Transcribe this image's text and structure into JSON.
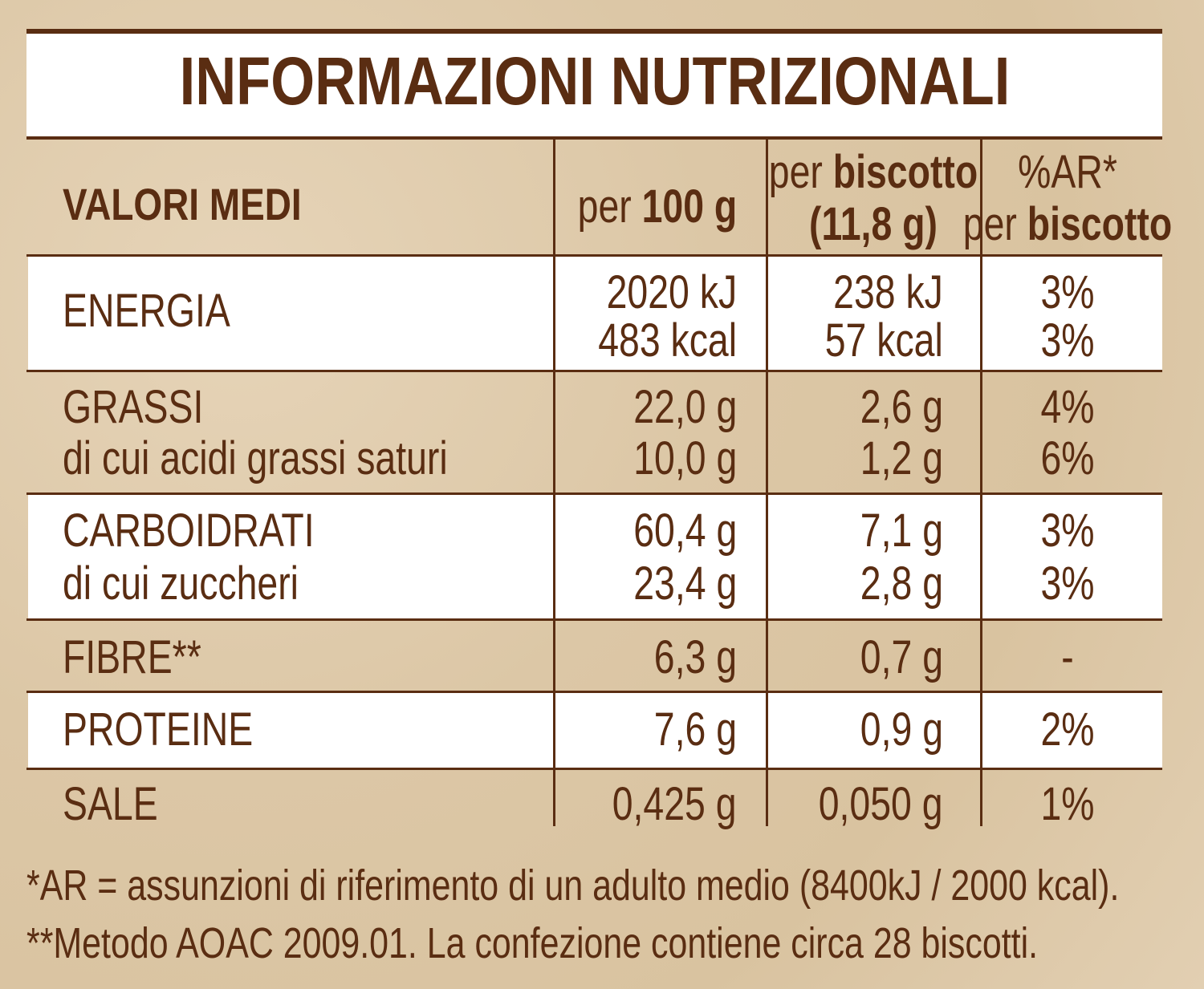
{
  "title": "INFORMAZIONI NUTRIZIONALI",
  "header": {
    "label": "VALORI MEDI",
    "per100": {
      "prefix": "per",
      "bold": "100 g"
    },
    "perBiscotto": {
      "prefix": "per",
      "bold": "biscotto",
      "line2": "(11,8 g)"
    },
    "ar": {
      "line1": "%AR*",
      "prefix": "per",
      "bold": "biscotto"
    }
  },
  "rows": [
    {
      "labels": [
        "ENERGIA"
      ],
      "per100": [
        "2020 kJ",
        "483 kcal"
      ],
      "perBiscotto": [
        "238 kJ",
        "57 kcal"
      ],
      "ar": [
        "3%",
        "3%"
      ]
    },
    {
      "labels": [
        "GRASSI",
        "di cui acidi grassi saturi"
      ],
      "per100": [
        "22,0 g",
        "10,0 g"
      ],
      "perBiscotto": [
        "2,6 g",
        "1,2 g"
      ],
      "ar": [
        "4%",
        "6%"
      ]
    },
    {
      "labels": [
        "CARBOIDRATI",
        "di cui zuccheri"
      ],
      "per100": [
        "60,4 g",
        "23,4 g"
      ],
      "perBiscotto": [
        "7,1 g",
        "2,8 g"
      ],
      "ar": [
        "3%",
        "3%"
      ]
    },
    {
      "labels": [
        "FIBRE**"
      ],
      "per100": [
        "6,3 g"
      ],
      "perBiscotto": [
        "0,7 g"
      ],
      "ar": [
        "-"
      ]
    },
    {
      "labels": [
        "PROTEINE"
      ],
      "per100": [
        "7,6 g"
      ],
      "perBiscotto": [
        "0,9 g"
      ],
      "ar": [
        "2%"
      ]
    },
    {
      "labels": [
        "SALE"
      ],
      "per100": [
        "0,425 g"
      ],
      "perBiscotto": [
        "0,050 g"
      ],
      "ar": [
        "1%"
      ]
    }
  ],
  "footnotes": [
    "*AR = assunzioni di riferimento di un adulto medio (8400kJ / 2000 kcal).",
    "**Metodo AOAC 2009.01. La confezione contiene circa 28 biscotti."
  ]
}
